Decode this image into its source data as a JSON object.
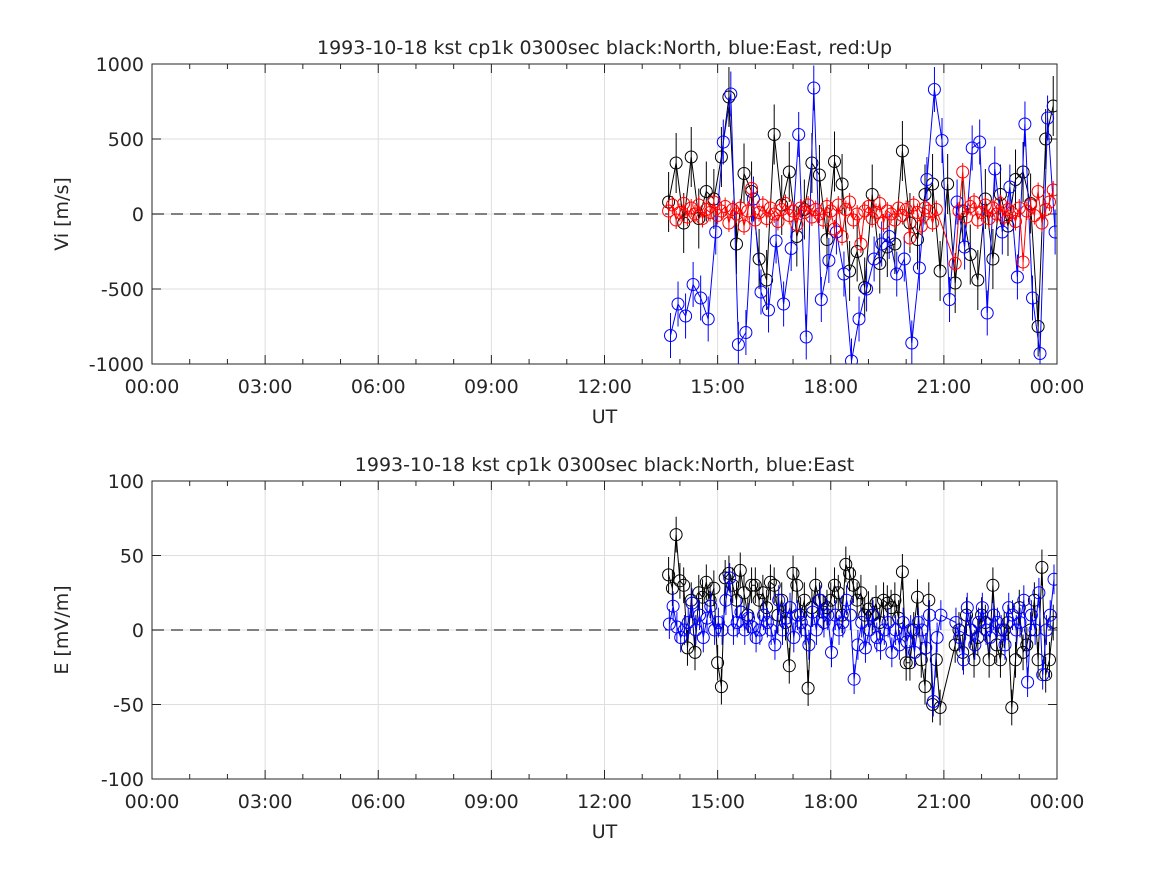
{
  "chart_data": [
    {
      "type": "scatter",
      "title": "1993-10-18 kst cp1k 0300sec black:North, blue:East, red:Up",
      "xlabel": "UT",
      "ylabel": "Vi [m/s]",
      "xlim_hours": [
        0,
        24
      ],
      "ylim": [
        -1000,
        1000
      ],
      "xticks": [
        "00:00",
        "03:00",
        "06:00",
        "09:00",
        "12:00",
        "15:00",
        "18:00",
        "21:00",
        "00:00"
      ],
      "yticks": [
        "1000",
        "500",
        "0",
        "-500",
        "-1000"
      ],
      "ytick_values": [
        1000,
        500,
        0,
        -500,
        -1000
      ],
      "grid": true,
      "zero_line": "dashed",
      "series": [
        {
          "color": "#000000",
          "hours": [
            13.7,
            13.9,
            14.1,
            14.3,
            14.5,
            14.7,
            14.9,
            15.1,
            15.3,
            15.5,
            15.7,
            15.9,
            16.1,
            16.3,
            16.5,
            16.7,
            16.9,
            17.1,
            17.3,
            17.5,
            17.7,
            17.9,
            18.1,
            18.3,
            18.5,
            18.7,
            18.9,
            19.1,
            19.3,
            19.5,
            19.7,
            19.9,
            20.1,
            20.3,
            20.5,
            20.7,
            20.9,
            21.1,
            21.3,
            21.5,
            21.7,
            21.9,
            22.1,
            22.3,
            22.5,
            22.7,
            22.9,
            23.1,
            23.3,
            23.5,
            23.7,
            23.9
          ],
          "values": [
            80,
            340,
            -60,
            380,
            -30,
            150,
            100,
            380,
            780,
            -200,
            270,
            150,
            -300,
            -440,
            530,
            60,
            280,
            -150,
            30,
            340,
            260,
            -170,
            350,
            200,
            -380,
            -250,
            -490,
            130,
            -330,
            -220,
            -200,
            420,
            -60,
            -170,
            130,
            200,
            -380,
            200,
            -460,
            20,
            -270,
            -440,
            100,
            -300,
            130,
            -80,
            230,
            280,
            70,
            -750,
            500,
            720
          ],
          "err": 200
        },
        {
          "color": "#0000ff",
          "hours": [
            13.75,
            13.95,
            14.15,
            14.35,
            14.55,
            14.75,
            14.95,
            15.15,
            15.35,
            15.55,
            15.75,
            15.95,
            16.15,
            16.35,
            16.55,
            16.75,
            16.95,
            17.15,
            17.35,
            17.55,
            17.75,
            17.95,
            18.15,
            18.35,
            18.55,
            18.75,
            18.95,
            19.15,
            19.35,
            19.55,
            19.75,
            19.95,
            20.15,
            20.35,
            20.55,
            20.75,
            20.95,
            21.15,
            21.35,
            21.55,
            21.75,
            21.95,
            22.15,
            22.35,
            22.55,
            22.75,
            22.95,
            23.15,
            23.35,
            23.55,
            23.75,
            23.95
          ],
          "values": [
            -810,
            -600,
            -680,
            -470,
            -560,
            -700,
            -120,
            480,
            800,
            -870,
            -790,
            100,
            -520,
            -640,
            -180,
            -600,
            -230,
            530,
            -820,
            840,
            -570,
            -310,
            -120,
            -400,
            -980,
            -700,
            -500,
            -300,
            -200,
            -150,
            -400,
            -300,
            -860,
            -360,
            230,
            830,
            490,
            -570,
            80,
            -220,
            440,
            480,
            -660,
            300,
            -120,
            180,
            -420,
            600,
            -560,
            -930,
            640,
            -120
          ],
          "err": 150
        },
        {
          "color": "#ff0000",
          "hours": [
            13.7,
            13.8,
            13.9,
            14.0,
            14.1,
            14.2,
            14.3,
            14.4,
            14.5,
            14.6,
            14.7,
            14.8,
            14.9,
            15.0,
            15.1,
            15.2,
            15.3,
            15.4,
            15.5,
            15.6,
            15.7,
            15.8,
            15.9,
            16.0,
            16.1,
            16.2,
            16.3,
            16.4,
            16.5,
            16.6,
            16.7,
            16.8,
            16.9,
            17.0,
            17.1,
            17.2,
            17.3,
            17.4,
            17.5,
            17.6,
            17.7,
            17.8,
            17.9,
            18.0,
            18.1,
            18.2,
            18.3,
            18.4,
            18.5,
            18.6,
            18.7,
            18.8,
            18.9,
            19.0,
            19.1,
            19.2,
            19.3,
            19.4,
            19.5,
            19.6,
            19.7,
            19.8,
            19.9,
            20.0,
            20.1,
            20.2,
            20.3,
            20.4,
            20.5,
            20.6,
            20.7,
            20.8,
            21.3,
            21.4,
            21.5,
            21.6,
            21.7,
            21.8,
            21.9,
            22.0,
            22.1,
            22.2,
            22.3,
            22.4,
            22.5,
            22.6,
            22.7,
            22.8,
            22.9,
            23.0,
            23.1,
            23.2,
            23.3,
            23.4,
            23.5,
            23.6,
            23.7,
            23.8,
            23.9
          ],
          "values": [
            20,
            60,
            -40,
            10,
            70,
            -20,
            40,
            0,
            60,
            -30,
            30,
            10,
            80,
            -10,
            20,
            50,
            -60,
            30,
            0,
            40,
            -80,
            20,
            170,
            -40,
            10,
            60,
            -30,
            40,
            0,
            -50,
            30,
            70,
            -10,
            20,
            -70,
            40,
            10,
            60,
            -20,
            30,
            0,
            -40,
            50,
            20,
            -100,
            60,
            -150,
            30,
            80,
            -40,
            0,
            -200,
            20,
            50,
            -30,
            10,
            70,
            -60,
            20,
            0,
            -40,
            40,
            -10,
            30,
            -160,
            60,
            10,
            -80,
            40,
            20,
            -60,
            30,
            -330,
            20,
            280,
            -20,
            50,
            80,
            -40,
            10,
            60,
            -30,
            40,
            0,
            70,
            -20,
            30,
            10,
            -50,
            40,
            -320,
            20,
            60,
            -10,
            150,
            -60,
            30,
            80,
            160
          ],
          "err": 60
        }
      ]
    },
    {
      "type": "scatter",
      "title": "1993-10-18 kst cp1k 0300sec black:North, blue:East",
      "xlabel": "UT",
      "ylabel": "E [mV/m]",
      "xlim_hours": [
        0,
        24
      ],
      "ylim": [
        -100,
        100
      ],
      "xticks": [
        "00:00",
        "03:00",
        "06:00",
        "09:00",
        "12:00",
        "15:00",
        "18:00",
        "21:00",
        "00:00"
      ],
      "yticks": [
        "100",
        "50",
        "0",
        "-50",
        "-100"
      ],
      "ytick_values": [
        100,
        50,
        0,
        -50,
        -100
      ],
      "grid": true,
      "zero_line": "dashed",
      "series": [
        {
          "color": "#000000",
          "hours": [
            13.7,
            13.8,
            13.9,
            14.0,
            14.1,
            14.2,
            14.3,
            14.4,
            14.5,
            14.6,
            14.7,
            14.8,
            14.9,
            15.0,
            15.1,
            15.2,
            15.3,
            15.4,
            15.5,
            15.6,
            15.7,
            15.8,
            15.9,
            16.0,
            16.1,
            16.2,
            16.3,
            16.4,
            16.5,
            16.6,
            16.7,
            16.8,
            16.9,
            17.0,
            17.1,
            17.2,
            17.3,
            17.4,
            17.5,
            17.6,
            17.7,
            17.8,
            17.9,
            18.0,
            18.1,
            18.2,
            18.3,
            18.4,
            18.5,
            18.6,
            18.7,
            18.8,
            18.9,
            19.0,
            19.1,
            19.2,
            19.3,
            19.4,
            19.5,
            19.6,
            19.7,
            19.8,
            19.9,
            20.0,
            20.1,
            20.2,
            20.3,
            20.4,
            20.5,
            20.6,
            20.7,
            20.8,
            20.9,
            21.3,
            21.4,
            21.5,
            21.6,
            21.7,
            21.8,
            21.9,
            22.0,
            22.1,
            22.2,
            22.3,
            22.4,
            22.5,
            22.6,
            22.7,
            22.8,
            22.9,
            23.0,
            23.1,
            23.2,
            23.3,
            23.4,
            23.5,
            23.6,
            23.7,
            23.8,
            23.9
          ],
          "values": [
            37,
            28,
            64,
            33,
            30,
            -12,
            20,
            -15,
            25,
            22,
            32,
            20,
            28,
            -22,
            -38,
            35,
            38,
            30,
            20,
            40,
            25,
            10,
            30,
            30,
            20,
            25,
            15,
            32,
            30,
            10,
            20,
            5,
            -24,
            38,
            30,
            10,
            20,
            -39,
            15,
            30,
            20,
            12,
            15,
            20,
            30,
            25,
            10,
            44,
            38,
            30,
            20,
            25,
            10,
            14,
            10,
            18,
            5,
            20,
            18,
            15,
            20,
            8,
            39,
            -22,
            -22,
            0,
            22,
            -20,
            -38,
            20,
            -50,
            -20,
            -52,
            -10,
            0,
            -15,
            10,
            0,
            -20,
            -5,
            10,
            5,
            -20,
            30,
            -10,
            -20,
            0,
            5,
            -52,
            -20,
            15,
            -15,
            -10,
            0,
            20,
            -20,
            42,
            -30,
            -20,
            5
          ],
          "err": 12
        },
        {
          "color": "#0000ff",
          "hours": [
            13.72,
            13.82,
            13.92,
            14.02,
            14.12,
            14.22,
            14.32,
            14.42,
            14.52,
            14.62,
            14.72,
            14.82,
            14.92,
            15.02,
            15.12,
            15.22,
            15.32,
            15.42,
            15.52,
            15.62,
            15.72,
            15.82,
            15.92,
            16.02,
            16.12,
            16.22,
            16.32,
            16.42,
            16.52,
            16.62,
            16.72,
            16.82,
            16.92,
            17.02,
            17.12,
            17.22,
            17.32,
            17.42,
            17.52,
            17.62,
            17.72,
            17.82,
            17.92,
            18.02,
            18.12,
            18.22,
            18.32,
            18.42,
            18.52,
            18.62,
            18.72,
            18.82,
            18.92,
            19.02,
            19.12,
            19.22,
            19.32,
            19.42,
            19.52,
            19.62,
            19.72,
            19.82,
            19.92,
            20.02,
            20.12,
            20.22,
            20.32,
            20.42,
            20.52,
            20.62,
            20.72,
            20.82,
            20.92,
            21.32,
            21.42,
            21.52,
            21.62,
            21.72,
            21.82,
            21.92,
            22.02,
            22.12,
            22.22,
            22.32,
            22.42,
            22.52,
            22.62,
            22.72,
            22.82,
            22.92,
            23.02,
            23.12,
            23.22,
            23.32,
            23.42,
            23.52,
            23.62,
            23.72,
            23.82,
            23.92
          ],
          "values": [
            4,
            16,
            2,
            -5,
            0,
            5,
            18,
            0,
            10,
            -5,
            8,
            16,
            0,
            5,
            0,
            20,
            35,
            0,
            5,
            12,
            0,
            8,
            2,
            -5,
            0,
            10,
            5,
            0,
            -10,
            20,
            0,
            8,
            15,
            -5,
            10,
            5,
            0,
            -10,
            12,
            0,
            20,
            5,
            10,
            -15,
            10,
            0,
            5,
            20,
            10,
            -33,
            -10,
            5,
            -12,
            0,
            10,
            -5,
            -10,
            0,
            5,
            -15,
            0,
            -10,
            5,
            -8,
            0,
            -15,
            5,
            0,
            -12,
            10,
            -48,
            -5,
            10,
            5,
            -5,
            -20,
            15,
            0,
            -10,
            5,
            15,
            0,
            -5,
            10,
            5,
            0,
            -10,
            15,
            10,
            0,
            5,
            20,
            -35,
            10,
            0,
            25,
            -30,
            0,
            10,
            34
          ],
          "err": 10
        }
      ]
    }
  ]
}
